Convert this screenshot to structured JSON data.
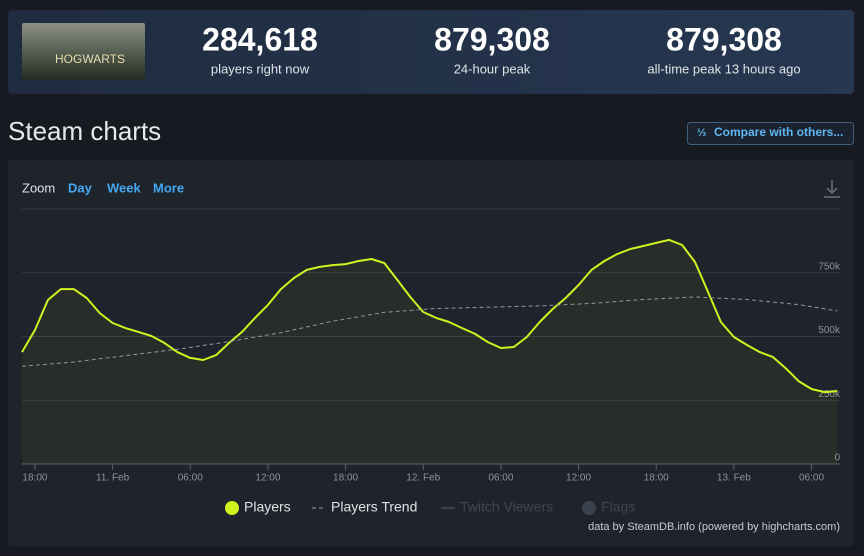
{
  "header": {
    "logo_text": "HOGWARTS",
    "stats": [
      {
        "value": "284,618",
        "label": "players right now"
      },
      {
        "value": "879,308",
        "label": "24-hour peak"
      },
      {
        "value": "879,308",
        "label": "all-time peak 13 hours ago"
      }
    ]
  },
  "page_title": "Steam charts",
  "compare_button": "Compare with others...",
  "zoom": {
    "label": "Zoom",
    "options": [
      "Day",
      "Week",
      "More"
    ]
  },
  "credits": "data by SteamDB.info (powered by highcharts.com)",
  "chart_data": {
    "type": "line",
    "xlim": [
      -1,
      62.2
    ],
    "xticks": [
      {
        "value": 0,
        "label": "18:00"
      },
      {
        "value": 6,
        "label": "11. Feb"
      },
      {
        "value": 12,
        "label": "06:00"
      },
      {
        "value": 18,
        "label": "12:00"
      },
      {
        "value": 24,
        "label": "18:00"
      },
      {
        "value": 30,
        "label": "12. Feb"
      },
      {
        "value": 36,
        "label": "06:00"
      },
      {
        "value": 42,
        "label": "12:00"
      },
      {
        "value": 48,
        "label": "18:00"
      },
      {
        "value": 54,
        "label": "13. Feb"
      },
      {
        "value": 60,
        "label": "06:00"
      }
    ],
    "ylim": [
      0,
      1000000
    ],
    "yticks": [
      0,
      {
        "value": 250000,
        "label": "250k"
      },
      {
        "value": 500000,
        "label": "500k"
      },
      {
        "value": 750000,
        "label": "750k"
      }
    ],
    "grid": true,
    "series": [
      {
        "name": "Players",
        "color": "#d2f220",
        "marker": "circle",
        "x": [
          -1,
          0,
          1,
          2,
          3,
          4,
          5,
          6,
          7,
          8,
          9,
          10,
          11,
          12,
          13,
          14,
          15,
          16,
          17,
          18,
          19,
          20,
          21,
          22,
          23,
          24,
          25,
          26,
          27,
          28,
          29,
          30,
          31,
          32,
          33,
          34,
          35,
          36,
          37,
          38,
          39,
          40,
          41,
          42,
          43,
          44,
          45,
          46,
          47,
          48,
          49,
          50,
          51,
          52,
          53,
          54,
          55,
          56,
          57,
          58,
          59,
          60,
          61,
          62
        ],
        "values": [
          439000,
          525000,
          643000,
          686000,
          686000,
          651000,
          592000,
          553000,
          533000,
          518000,
          502000,
          475000,
          439000,
          416000,
          408000,
          427000,
          475000,
          518000,
          573000,
          624000,
          686000,
          729000,
          761000,
          773000,
          780000,
          784000,
          796000,
          804000,
          788000,
          722000,
          655000,
          596000,
          573000,
          557000,
          533000,
          510000,
          478000,
          455000,
          459000,
          498000,
          557000,
          608000,
          651000,
          702000,
          761000,
          796000,
          824000,
          843000,
          855000,
          867000,
          879000,
          859000,
          792000,
          675000,
          557000,
          498000,
          467000,
          439000,
          420000,
          376000,
          325000,
          294000,
          282000,
          286000
        ]
      },
      {
        "name": "Players Trend",
        "color": "#8f98a0",
        "dash": true,
        "x": [
          -1,
          3,
          7,
          11,
          15,
          19,
          23,
          27,
          31,
          35,
          39,
          43,
          47,
          51,
          55,
          59,
          62
        ],
        "values": [
          383000,
          400000,
          425000,
          450000,
          480000,
          515000,
          560000,
          595000,
          610000,
          615000,
          620000,
          630000,
          645000,
          655000,
          645000,
          625000,
          600000
        ]
      },
      {
        "name": "Twitch Viewers",
        "color": "#3a4250",
        "hidden": true,
        "x": [],
        "values": []
      },
      {
        "name": "Flags",
        "color": "#3a4250",
        "hidden": true,
        "marker": "circle",
        "x": [],
        "values": []
      }
    ]
  }
}
